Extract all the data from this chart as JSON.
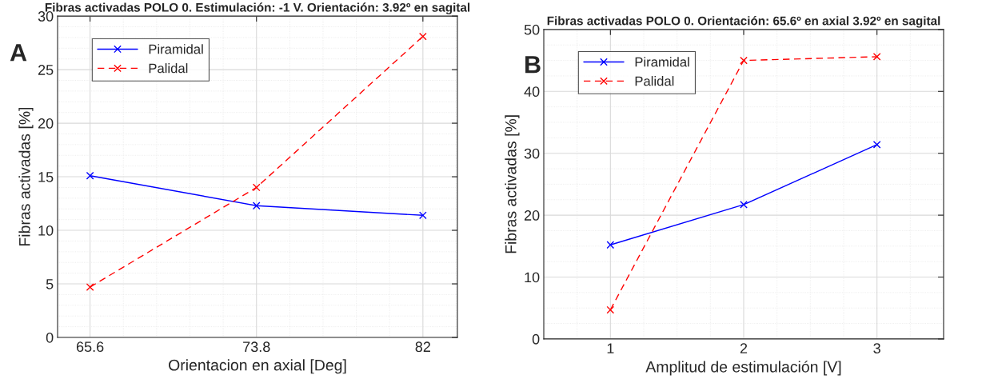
{
  "chart_data": [
    {
      "type": "line",
      "title": "Fibras activadas POLO 0. Estimulación: -1 V. Orientación: 3.92º en sagital",
      "xlabel": "Orientacion en axial [Deg]",
      "ylabel": "Fibras activadas [%]",
      "annotations": [
        "A"
      ],
      "x": [
        65.6,
        73.8,
        82
      ],
      "xlim": [
        64,
        83.7
      ],
      "xticks": [
        65.6,
        73.8,
        82
      ],
      "ylim": [
        0,
        30
      ],
      "yticks": [
        0,
        5,
        10,
        15,
        20,
        25,
        30
      ],
      "grid": true,
      "legend": "top left",
      "marker": "cross",
      "series": [
        {
          "name": "Piramidal",
          "color": "#0000ff",
          "line_style": "solid",
          "values": [
            15.1,
            12.3,
            11.4
          ]
        },
        {
          "name": "Palidal",
          "color": "#ff0000",
          "line_style": "dashed",
          "values": [
            4.7,
            14.0,
            28.1
          ]
        }
      ]
    },
    {
      "type": "line",
      "title": "Fibras activadas POLO 0. Orientación: 65.6º en axial 3.92º en sagital",
      "xlabel": "Amplitud de estimulación [V]",
      "ylabel": "Fibras activadas [%]",
      "annotations": [
        "B"
      ],
      "x": [
        1,
        2,
        3
      ],
      "xlim": [
        0.5,
        3.5
      ],
      "xticks": [
        1,
        2,
        3
      ],
      "ylim": [
        0,
        50
      ],
      "yticks": [
        0,
        10,
        20,
        30,
        40,
        50
      ],
      "grid": true,
      "legend": "top left",
      "marker": "cross",
      "series": [
        {
          "name": "Piramidal",
          "color": "#0000ff",
          "line_style": "solid",
          "values": [
            15.2,
            21.7,
            31.4
          ]
        },
        {
          "name": "Palidal",
          "color": "#ff0000",
          "line_style": "dashed",
          "values": [
            4.7,
            45.0,
            45.6
          ]
        }
      ]
    }
  ]
}
